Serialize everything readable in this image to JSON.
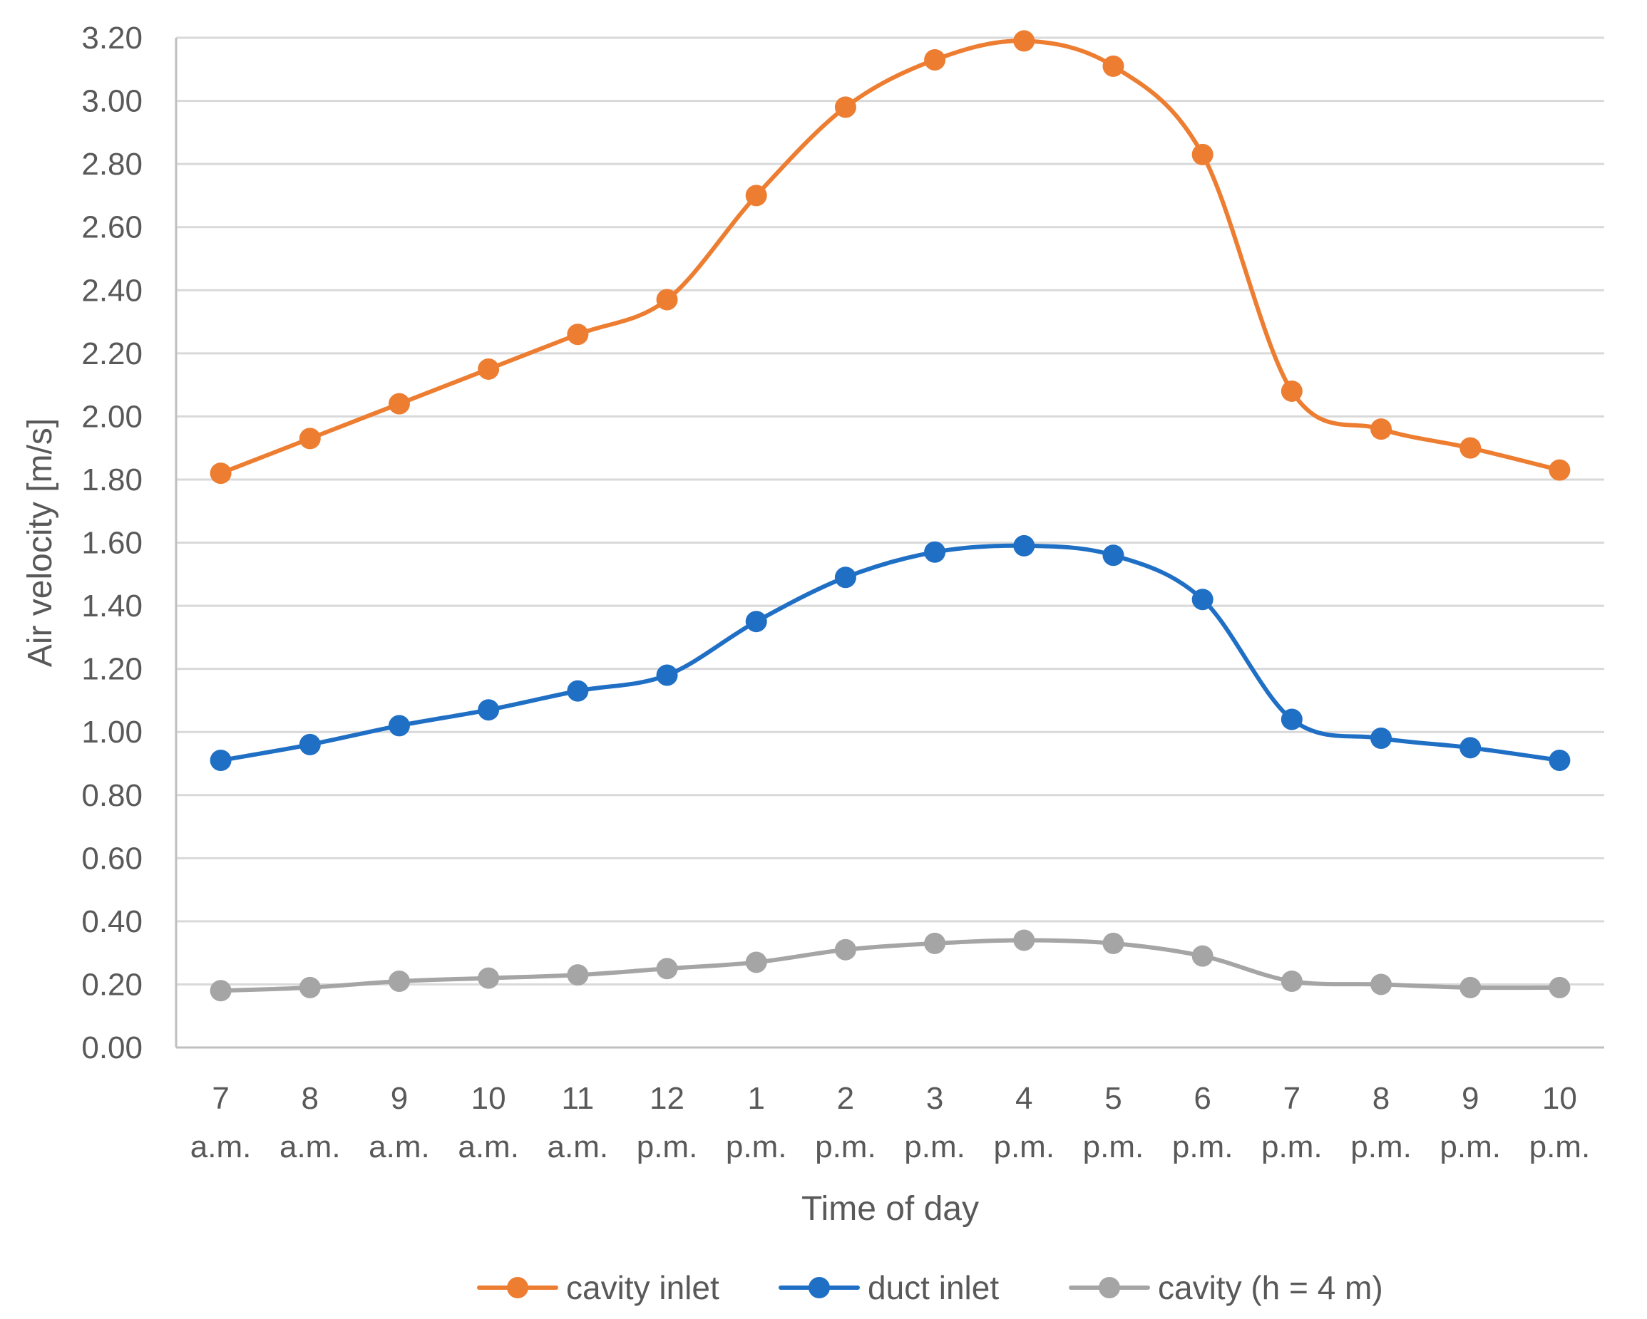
{
  "chart_data": {
    "type": "line",
    "title": "",
    "xlabel": "Time of day",
    "ylabel": "Air velocity [m/s]",
    "ylim": [
      0,
      3.2
    ],
    "ytick_step": 0.2,
    "yticks": [
      "0.00",
      "0.20",
      "0.40",
      "0.60",
      "0.80",
      "1.00",
      "1.20",
      "1.40",
      "1.60",
      "1.80",
      "2.00",
      "2.20",
      "2.40",
      "2.60",
      "2.80",
      "3.00",
      "3.20"
    ],
    "grid": true,
    "legend_position": "bottom",
    "categories": [
      {
        "hour": "7",
        "period": "a.m."
      },
      {
        "hour": "8",
        "period": "a.m."
      },
      {
        "hour": "9",
        "period": "a.m."
      },
      {
        "hour": "10",
        "period": "a.m."
      },
      {
        "hour": "11",
        "period": "a.m."
      },
      {
        "hour": "12",
        "period": "p.m."
      },
      {
        "hour": "1",
        "period": "p.m."
      },
      {
        "hour": "2",
        "period": "p.m."
      },
      {
        "hour": "3",
        "period": "p.m."
      },
      {
        "hour": "4",
        "period": "p.m."
      },
      {
        "hour": "5",
        "period": "p.m."
      },
      {
        "hour": "6",
        "period": "p.m."
      },
      {
        "hour": "7",
        "period": "p.m."
      },
      {
        "hour": "8",
        "period": "p.m."
      },
      {
        "hour": "9",
        "period": "p.m."
      },
      {
        "hour": "10",
        "period": "p.m."
      }
    ],
    "series": [
      {
        "name": "cavity inlet",
        "color": "#ED7D31",
        "values": [
          1.82,
          1.93,
          2.04,
          2.15,
          2.26,
          2.37,
          2.7,
          2.98,
          3.13,
          3.19,
          3.11,
          2.83,
          2.08,
          1.96,
          1.9,
          1.83
        ]
      },
      {
        "name": "duct inlet",
        "color": "#1F6FC5",
        "values": [
          0.91,
          0.96,
          1.02,
          1.07,
          1.13,
          1.18,
          1.35,
          1.49,
          1.57,
          1.59,
          1.56,
          1.42,
          1.04,
          0.98,
          0.95,
          0.91
        ]
      },
      {
        "name": "cavity (h = 4 m)",
        "color": "#A5A5A5",
        "values": [
          0.18,
          0.19,
          0.21,
          0.22,
          0.23,
          0.25,
          0.27,
          0.31,
          0.33,
          0.34,
          0.33,
          0.29,
          0.21,
          0.2,
          0.19,
          0.19
        ]
      }
    ]
  }
}
